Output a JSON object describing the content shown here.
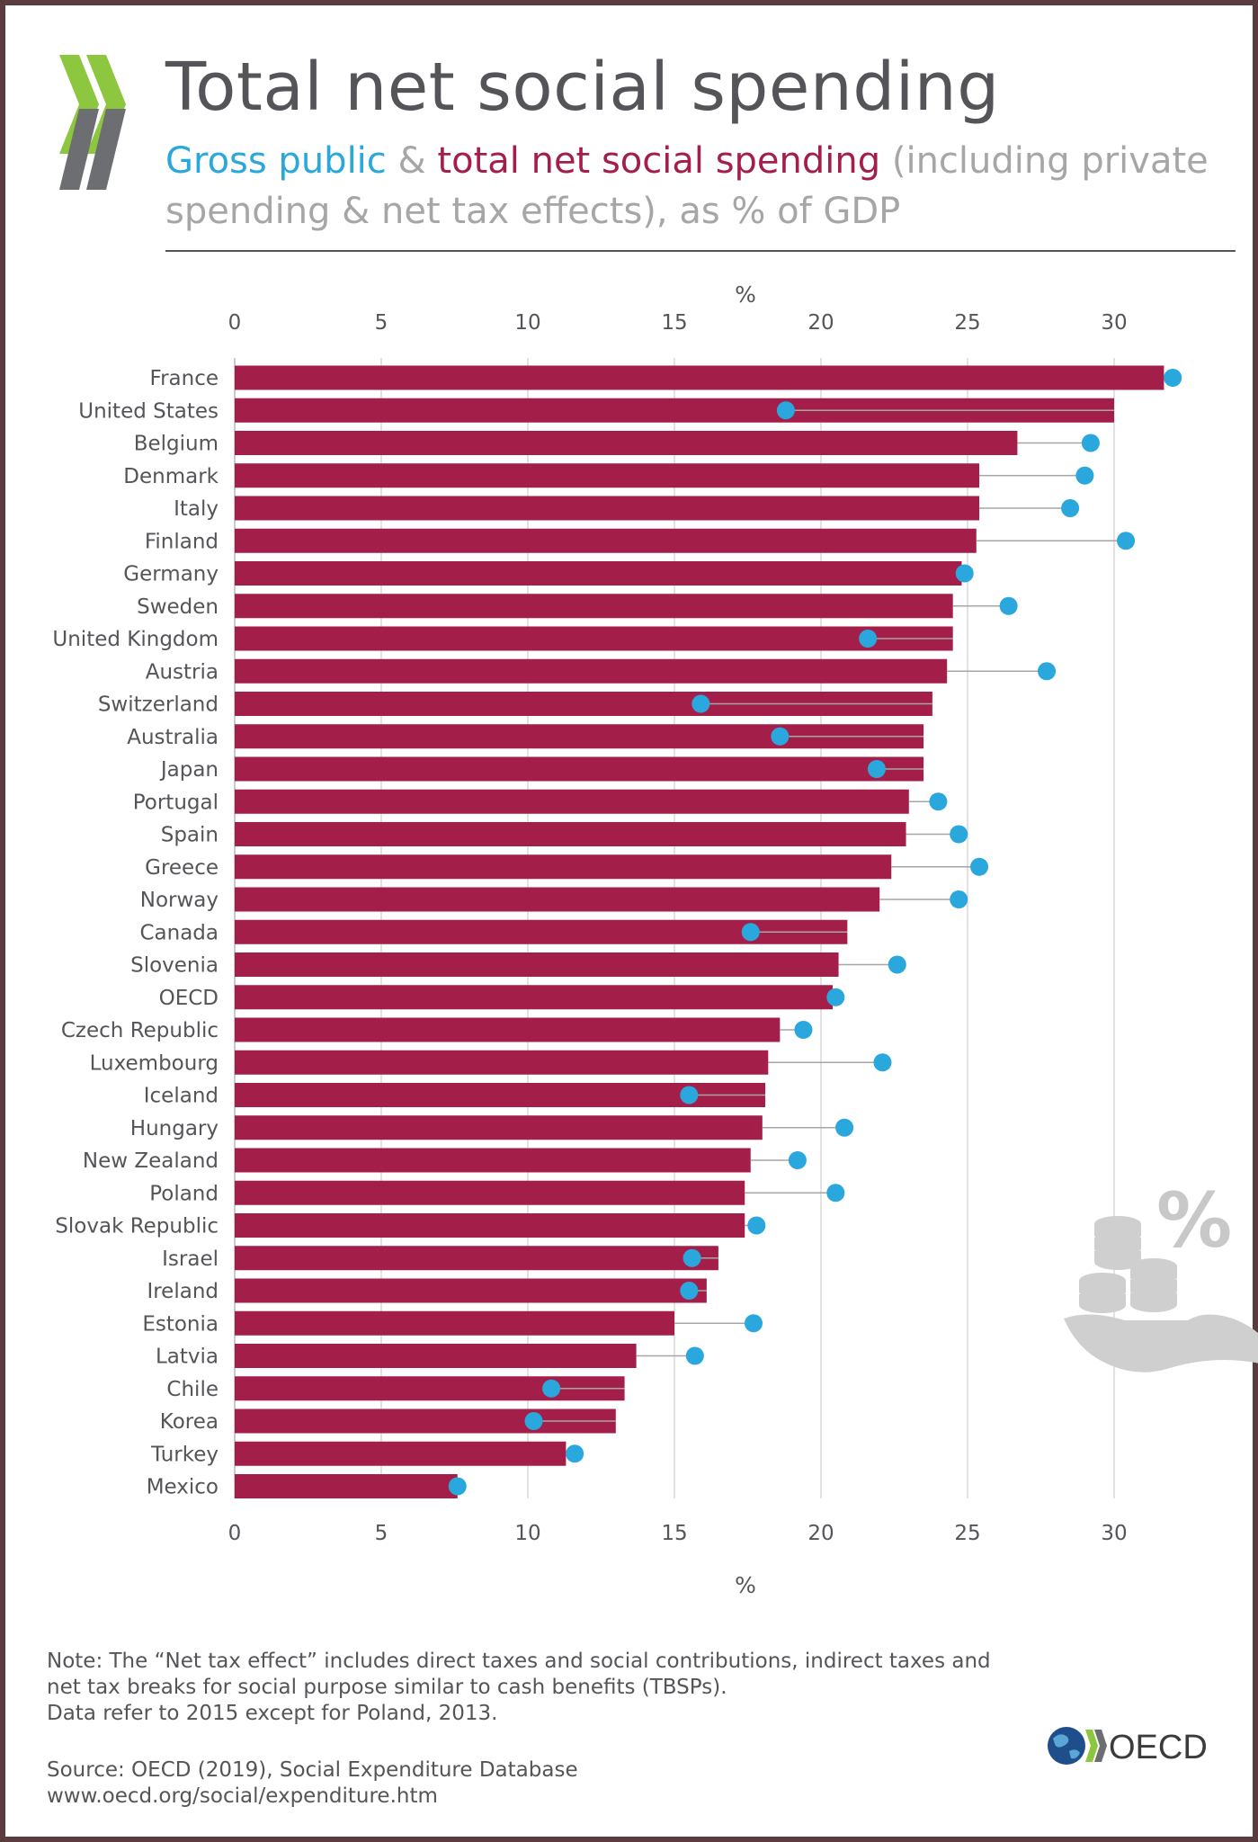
{
  "header": {
    "title": "Total net social spending",
    "subtitle_gross": "Gross public",
    "subtitle_amp": " & ",
    "subtitle_net": "total net social spending",
    "subtitle_rest": " (including private spending & net tax effects), as % of GDP"
  },
  "footer": {
    "note_line1": "Note: The “Net tax effect” includes direct taxes and social contributions, indirect taxes and",
    "note_line2": "net tax breaks for social purpose similar to cash benefits (TBSPs).",
    "note_line3": "Data refer to 2015 except for Poland, 2013.",
    "source_line1": "Source: OECD (2019), Social Expenditure Database",
    "source_line2": "www.oecd.org/social/expenditure.htm",
    "logo_text": "OECD"
  },
  "colors": {
    "gross_public": "#2aa7dc",
    "total_net": "#a31f4a",
    "connector": "#a6a6a6",
    "grid": "#d9d9d9",
    "title": "#555559"
  },
  "chart_data": {
    "type": "bar",
    "orientation": "horizontal",
    "axis_label_top": "%",
    "axis_label_bottom": "%",
    "xlim": [
      0,
      32.5
    ],
    "ticks": [
      0,
      5,
      10,
      15,
      20,
      25,
      30
    ],
    "grid": true,
    "categories": [
      "France",
      "United States",
      "Belgium",
      "Denmark",
      "Italy",
      "Finland",
      "Germany",
      "Sweden",
      "United Kingdom",
      "Austria",
      "Switzerland",
      "Australia",
      "Japan",
      "Portugal",
      "Spain",
      "Greece",
      "Norway",
      "Canada",
      "Slovenia",
      "OECD",
      "Czech Republic",
      "Luxembourg",
      "Iceland",
      "Hungary",
      "New Zealand",
      "Poland",
      "Slovak Republic",
      "Israel",
      "Ireland",
      "Estonia",
      "Latvia",
      "Chile",
      "Korea",
      "Turkey",
      "Mexico"
    ],
    "series": [
      {
        "name": "total net social spending",
        "mark": "bar",
        "values": [
          31.7,
          30.0,
          26.7,
          25.4,
          25.4,
          25.3,
          24.8,
          24.5,
          24.5,
          24.3,
          23.8,
          23.5,
          23.5,
          23.0,
          22.9,
          22.4,
          22.0,
          20.9,
          20.6,
          20.4,
          18.6,
          18.2,
          18.1,
          18.0,
          17.6,
          17.4,
          17.4,
          16.5,
          16.1,
          15.0,
          13.7,
          13.3,
          13.0,
          11.3,
          7.6
        ]
      },
      {
        "name": "Gross public",
        "mark": "dot",
        "values": [
          32.0,
          18.8,
          29.2,
          29.0,
          28.5,
          30.4,
          24.9,
          26.4,
          21.6,
          27.7,
          15.9,
          18.6,
          21.9,
          24.0,
          24.7,
          25.4,
          24.7,
          17.6,
          22.6,
          20.5,
          19.4,
          22.1,
          15.5,
          20.8,
          19.2,
          20.5,
          17.8,
          15.6,
          15.5,
          17.7,
          15.7,
          10.8,
          10.2,
          11.6,
          7.6
        ]
      }
    ]
  }
}
